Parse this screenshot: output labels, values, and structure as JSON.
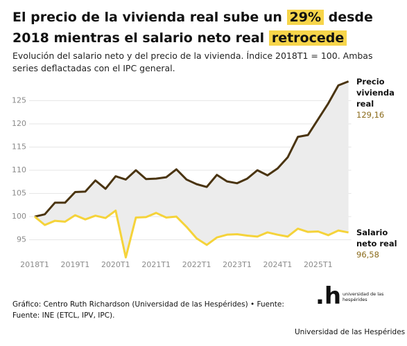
{
  "chart_data": {
    "type": "line",
    "title_parts": [
      {
        "text": "El precio de la vivienda real sube un",
        "highlight": false
      },
      {
        "text": "29%",
        "highlight": true
      },
      {
        "text": "desde 2018 mientras el salario neto real",
        "highlight": false
      },
      {
        "text": "retrocede",
        "highlight": true
      }
    ],
    "subtitle": "Evolución del salario neto y del precio de la vivienda. Índice 2018T1 = 100. Ambas series deflactadas con el IPC general.",
    "categories": [
      "2018T1",
      null,
      null,
      null,
      "2019T1",
      null,
      null,
      null,
      "2020T1",
      null,
      null,
      null,
      "2021T1",
      null,
      null,
      null,
      "2022T1",
      null,
      null,
      null,
      "2023T1",
      null,
      null,
      null,
      "2024T1",
      null,
      null,
      null,
      "2025T1",
      null,
      null,
      null
    ],
    "series": [
      {
        "name": "Precio vivienda real",
        "color": "#4a3410",
        "label_color": "#8a6a1a",
        "values": [
          100,
          100.5,
          103,
          103,
          105.3,
          105.4,
          107.8,
          106,
          108.7,
          108,
          110,
          108.1,
          108.2,
          108.5,
          110.2,
          108,
          107,
          106.4,
          109,
          107.6,
          107.2,
          108.2,
          110,
          108.9,
          110.4,
          112.8,
          117.2,
          117.6,
          121,
          124.4,
          128.3,
          129.16
        ],
        "value_labels": [
          null,
          null,
          null,
          null,
          null,
          null,
          null,
          null,
          null,
          null,
          null,
          null,
          null,
          null,
          null,
          null,
          null,
          null,
          null,
          null,
          null,
          null,
          null,
          null,
          null,
          null,
          null,
          null,
          null,
          null,
          null,
          "129,16"
        ]
      },
      {
        "name": "Salario neto real",
        "color": "#f5d33a",
        "label_color": "#8a6a1a",
        "values": [
          100,
          98.2,
          99.1,
          98.9,
          100.3,
          99.4,
          100.2,
          99.7,
          101.3,
          91.2,
          99.8,
          99.9,
          100.8,
          99.8,
          100,
          97.8,
          95.3,
          93.9,
          95.5,
          96.1,
          96.2,
          95.9,
          95.7,
          96.6,
          96.1,
          95.7,
          97.4,
          96.7,
          96.8,
          96,
          97,
          96.58
        ],
        "value_labels": [
          null,
          null,
          null,
          null,
          null,
          null,
          null,
          null,
          null,
          null,
          null,
          null,
          null,
          null,
          null,
          null,
          null,
          null,
          null,
          null,
          null,
          null,
          null,
          null,
          null,
          null,
          null,
          null,
          null,
          null,
          null,
          "96,58"
        ]
      }
    ],
    "ylim": [
      91.5,
      130
    ],
    "yticks": [
      95,
      100,
      105,
      110,
      115,
      120,
      125
    ],
    "grid": true,
    "gap_fill": "#ececec",
    "source": "Gráfico: Centro Ruth Richardson (Universidad de las Hespérides) • Fuente: Fuente: INE (ETCL, IPV, IPC).",
    "logo_mark": ".h",
    "logo_text": "universidad de las hespérides",
    "footer": "Universidad de las Hespérides"
  }
}
